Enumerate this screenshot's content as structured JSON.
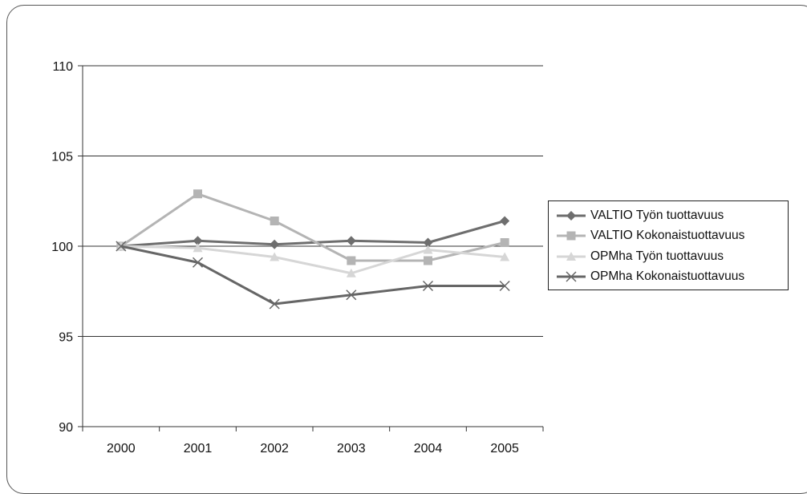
{
  "chart_data": {
    "type": "line",
    "title": "",
    "xlabel": "",
    "ylabel": "",
    "categories": [
      "2000",
      "2001",
      "2002",
      "2003",
      "2004",
      "2005"
    ],
    "ylim": [
      90,
      110
    ],
    "yticks": [
      "90",
      "95",
      "100",
      "105",
      "110"
    ],
    "grid": true,
    "legend_position": "right",
    "series": [
      {
        "name": "VALTIO Työn tuottavuus",
        "values": [
          100,
          100.3,
          100.1,
          100.3,
          100.2,
          101.4
        ],
        "color": "#6e6e6e",
        "marker": "diamond"
      },
      {
        "name": "VALTIO Kokonaistuottavuus",
        "values": [
          100,
          102.9,
          101.4,
          99.2,
          99.2,
          100.2
        ],
        "color": "#b4b4b4",
        "marker": "square"
      },
      {
        "name": "OPMha Työn tuottavuus",
        "values": [
          100,
          99.9,
          99.4,
          98.5,
          99.8,
          99.4
        ],
        "color": "#d6d6d6",
        "marker": "triangle"
      },
      {
        "name": "OPMha Kokonaistuottavuus",
        "values": [
          100,
          99.1,
          96.8,
          97.3,
          97.8,
          97.8
        ],
        "color": "#666666",
        "marker": "x"
      }
    ]
  }
}
